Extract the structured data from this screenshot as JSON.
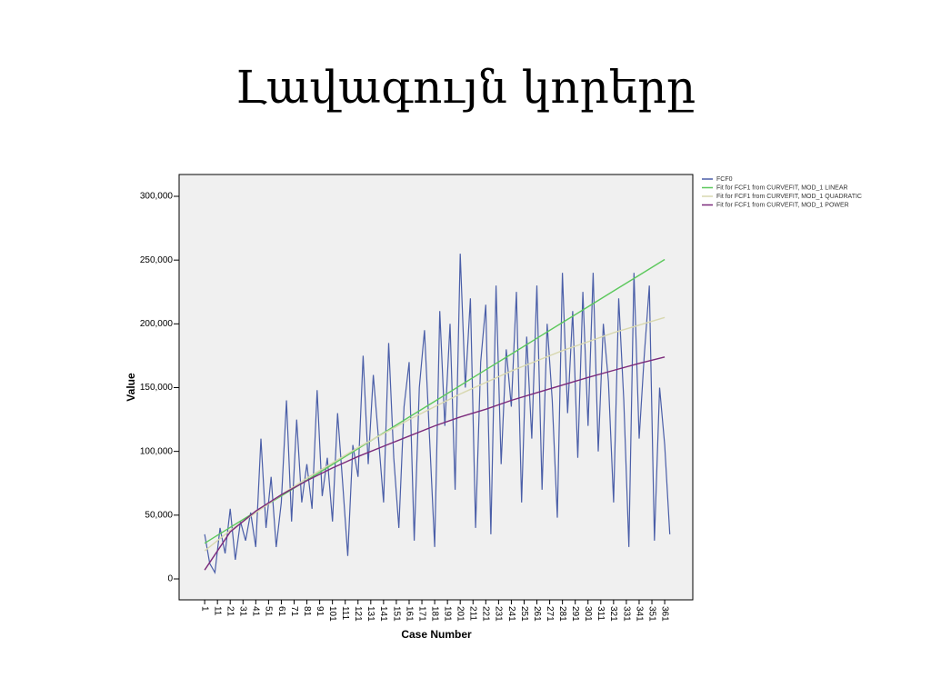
{
  "chart_data": {
    "type": "line",
    "title": "Լավագույն կորերը",
    "x_label": "Case Number",
    "y_label": "Value",
    "xlim": [
      -19,
      383
    ],
    "ylim": [
      -16400,
      317100
    ],
    "xticks": [
      1,
      11,
      21,
      31,
      41,
      51,
      61,
      71,
      81,
      91,
      101,
      111,
      121,
      131,
      141,
      151,
      161,
      171,
      181,
      191,
      201,
      211,
      221,
      231,
      241,
      251,
      261,
      271,
      281,
      291,
      301,
      311,
      321,
      331,
      341,
      351,
      361
    ],
    "yticks": [
      0,
      {
        "value": 50000,
        "label": "50,000"
      },
      {
        "value": 100000,
        "label": "100,000"
      },
      {
        "value": 150000,
        "label": "150,000"
      },
      {
        "value": 200000,
        "label": "200,000"
      },
      {
        "value": 250000,
        "label": "250,000"
      },
      {
        "value": 300000,
        "label": "300,000"
      }
    ],
    "legend": "top-right",
    "series": [
      {
        "name": "FCF0",
        "color": "#4a5ea8",
        "x": [
          1,
          5,
          9,
          13,
          17,
          21,
          25,
          29,
          33,
          37,
          41,
          45,
          49,
          53,
          57,
          61,
          65,
          69,
          73,
          77,
          81,
          85,
          89,
          93,
          97,
          101,
          105,
          109,
          113,
          117,
          121,
          125,
          129,
          133,
          137,
          141,
          145,
          149,
          153,
          157,
          161,
          165,
          169,
          173,
          177,
          181,
          185,
          189,
          193,
          197,
          201,
          205,
          209,
          213,
          217,
          221,
          225,
          229,
          233,
          237,
          241,
          245,
          249,
          253,
          257,
          261,
          265,
          269,
          273,
          277,
          281,
          285,
          289,
          293,
          297,
          301,
          305,
          309,
          313,
          317,
          321,
          325,
          329,
          333,
          337,
          341,
          345,
          349,
          353,
          357,
          361,
          365
        ],
        "values": [
          35000,
          12000,
          5000,
          40000,
          20000,
          55000,
          15000,
          45000,
          30000,
          52000,
          25000,
          110000,
          40000,
          80000,
          25000,
          60000,
          140000,
          45000,
          125000,
          60000,
          90000,
          55000,
          148000,
          65000,
          95000,
          45000,
          130000,
          75000,
          18000,
          105000,
          80000,
          175000,
          90000,
          160000,
          110000,
          60000,
          185000,
          95000,
          40000,
          135000,
          170000,
          30000,
          150000,
          195000,
          110000,
          25000,
          210000,
          120000,
          200000,
          70000,
          255000,
          150000,
          220000,
          40000,
          170000,
          215000,
          35000,
          230000,
          90000,
          180000,
          135000,
          225000,
          60000,
          190000,
          110000,
          230000,
          70000,
          200000,
          140000,
          48000,
          240000,
          130000,
          210000,
          95000,
          225000,
          120000,
          240000,
          100000,
          200000,
          155000,
          60000,
          220000,
          140000,
          25000,
          240000,
          110000,
          175000,
          230000,
          30000,
          150000,
          105000,
          35000
        ]
      },
      {
        "name": "Fit for FCF1 from CURVEFIT, MOD_1 LINEAR",
        "color": "#5cc85c",
        "x": [
          1,
          21,
          41,
          61,
          81,
          101,
          121,
          141,
          161,
          181,
          201,
          221,
          241,
          261,
          281,
          301,
          321,
          341,
          361
        ],
        "values": [
          28000,
          40400,
          52700,
          65100,
          77400,
          89800,
          102200,
          114500,
          126900,
          139200,
          151600,
          164000,
          176300,
          188700,
          201000,
          213400,
          225800,
          238100,
          250500
        ]
      },
      {
        "name": "Fit for FCF1 from CURVEFIT, MOD_1 QUADRATIC",
        "color": "#d8d8b0",
        "x": [
          1,
          21,
          41,
          61,
          81,
          101,
          121,
          141,
          161,
          181,
          201,
          221,
          241,
          261,
          281,
          301,
          321,
          341,
          361
        ],
        "values": [
          22000,
          38000,
          52000,
          66000,
          79000,
          91000,
          103000,
          114000,
          125000,
          135000,
          145000,
          154000,
          163000,
          171000,
          179000,
          186000,
          193000,
          199000,
          205000
        ]
      },
      {
        "name": "Fit for FCF1 from CURVEFIT, MOD_1 POWER",
        "color": "#7b2a7b",
        "x": [
          1,
          21,
          41,
          61,
          81,
          101,
          121,
          141,
          161,
          181,
          201,
          221,
          241,
          261,
          281,
          301,
          321,
          341,
          361
        ],
        "values": [
          7000,
          36900,
          53200,
          66000,
          77000,
          87000,
          96000,
          104000,
          112000,
          120000,
          127000,
          133000,
          140000,
          146000,
          152000,
          158000,
          163500,
          169000,
          174000
        ]
      }
    ]
  }
}
